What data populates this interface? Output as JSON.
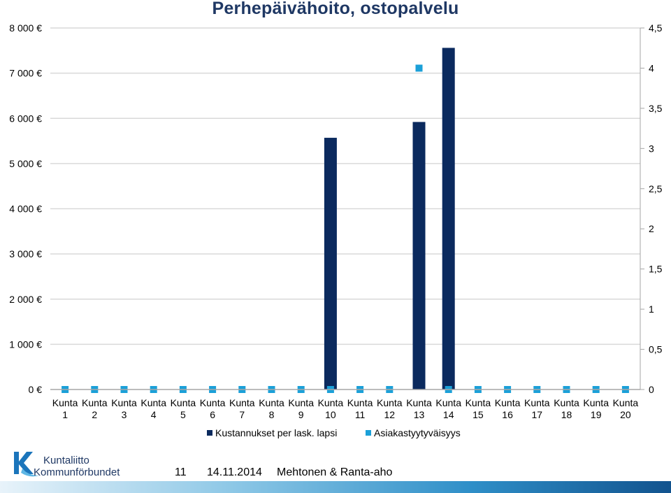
{
  "title": "Perhepäivähoito, ostopalvelu",
  "colors": {
    "bar": "#0b2a5e",
    "marker": "#1ba0d8",
    "grid": "#d9d9d9",
    "axis": "#a6a6a6",
    "title": "#1f3864"
  },
  "chart_data": {
    "type": "bar",
    "title": "Perhepäivähoito, ostopalvelu",
    "categories": [
      "Kunta 1",
      "Kunta 2",
      "Kunta 3",
      "Kunta 4",
      "Kunta 5",
      "Kunta 6",
      "Kunta 7",
      "Kunta 8",
      "Kunta 9",
      "Kunta 10",
      "Kunta 11",
      "Kunta 12",
      "Kunta 13",
      "Kunta 14",
      "Kunta 15",
      "Kunta 16",
      "Kunta 17",
      "Kunta 18",
      "Kunta 19",
      "Kunta 20"
    ],
    "series": [
      {
        "name": "Kustannukset per lask. lapsi",
        "type": "bar",
        "axis": "left",
        "values": [
          0,
          0,
          0,
          0,
          0,
          0,
          0,
          0,
          0,
          5570,
          0,
          0,
          5920,
          7560,
          0,
          0,
          0,
          0,
          0,
          0
        ]
      },
      {
        "name": "Asiakastyytyväisyys",
        "type": "scatter",
        "axis": "right",
        "values": [
          0,
          0,
          0,
          0,
          0,
          0,
          0,
          0,
          0,
          0,
          0,
          0,
          4.0,
          0,
          0,
          0,
          0,
          0,
          0,
          0
        ]
      }
    ],
    "y_left": {
      "range": [
        0,
        8000
      ],
      "ticks": [
        0,
        1000,
        2000,
        3000,
        4000,
        5000,
        6000,
        7000,
        8000
      ],
      "tick_labels": [
        "0 €",
        "1 000 €",
        "2 000 €",
        "3 000 €",
        "4 000 €",
        "5 000 €",
        "6 000 €",
        "7 000 €",
        "8 000 €"
      ]
    },
    "y_right": {
      "range": [
        0,
        4.5
      ],
      "ticks": [
        0,
        0.5,
        1,
        1.5,
        2,
        2.5,
        3,
        3.5,
        4,
        4.5
      ],
      "tick_labels": [
        "0",
        "0,5",
        "1",
        "1,5",
        "2",
        "2,5",
        "3",
        "3,5",
        "4",
        "4,5"
      ]
    },
    "grid": true,
    "legend_position": "bottom"
  },
  "logo": {
    "line1": "Kuntaliitto",
    "line2": "Kommunförbundet"
  },
  "footer": {
    "page_number": "11",
    "date": "14.11.2014",
    "authors": "Mehtonen & Ranta-aho"
  }
}
